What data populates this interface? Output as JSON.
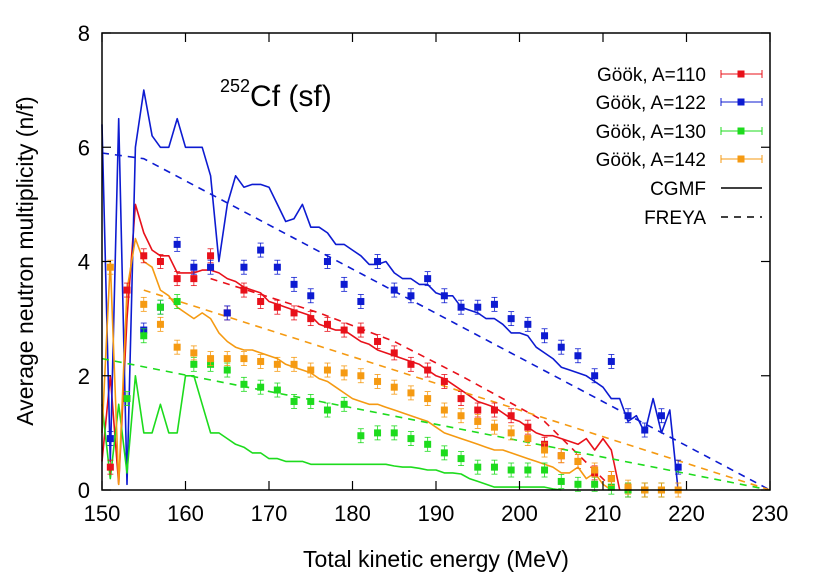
{
  "chart_data": {
    "type": "scatter",
    "title": "Cf (sf)",
    "title_superscript": "252",
    "xlabel": "Total kinetic energy (MeV)",
    "ylabel": "Average neutron multiplicity (n/f)",
    "xlim": [
      150,
      230
    ],
    "ylim": [
      0,
      8
    ],
    "xticks": [
      150,
      160,
      170,
      180,
      190,
      200,
      210,
      220,
      230
    ],
    "yticks": [
      0,
      2,
      4,
      6,
      8
    ],
    "grid": false,
    "legend_position": "top-right",
    "series": [
      {
        "name": "Göök, A=110",
        "kind": "points",
        "color": "#e8111a",
        "x": [
          151,
          153,
          155,
          157,
          159,
          161,
          163,
          165,
          167,
          169,
          171,
          173,
          175,
          177,
          179,
          181,
          183,
          185,
          187,
          189,
          191,
          193,
          195,
          197,
          199,
          201,
          203,
          205,
          207,
          209,
          211,
          213,
          215,
          217
        ],
        "y": [
          0.4,
          3.5,
          4.1,
          4.0,
          3.7,
          3.7,
          4.1,
          3.1,
          3.5,
          3.3,
          3.2,
          3.1,
          3.0,
          2.9,
          2.8,
          2.8,
          2.6,
          2.4,
          2.2,
          2.1,
          1.9,
          1.6,
          1.4,
          1.4,
          1.3,
          1.1,
          0.8,
          0.6,
          0.5,
          0.3,
          0.2,
          0.0,
          0.0,
          0.0
        ]
      },
      {
        "name": "Göök, A=122",
        "kind": "points",
        "color": "#0d1bd1",
        "x": [
          151,
          155,
          157,
          159,
          161,
          163,
          165,
          167,
          169,
          171,
          173,
          175,
          177,
          179,
          181,
          183,
          185,
          187,
          189,
          191,
          193,
          195,
          197,
          199,
          201,
          203,
          205,
          207,
          209,
          211,
          213,
          215,
          217,
          219
        ],
        "y": [
          0.9,
          2.8,
          3.2,
          4.3,
          3.9,
          3.9,
          3.1,
          3.9,
          4.2,
          3.9,
          3.6,
          3.4,
          4.0,
          3.6,
          3.3,
          4.0,
          3.5,
          3.4,
          3.7,
          3.4,
          3.2,
          3.2,
          3.25,
          3.0,
          2.9,
          2.7,
          2.5,
          2.35,
          2.0,
          2.25,
          1.3,
          1.05,
          1.3,
          0.4
        ]
      },
      {
        "name": "Göök, A=130",
        "kind": "points",
        "color": "#1ddb1d",
        "x": [
          153,
          155,
          157,
          159,
          161,
          163,
          165,
          167,
          169,
          171,
          173,
          175,
          177,
          179,
          181,
          183,
          185,
          187,
          189,
          191,
          193,
          195,
          197,
          199,
          201,
          203,
          205,
          207,
          209,
          211,
          213,
          215,
          217
        ],
        "y": [
          1.6,
          2.7,
          3.2,
          3.3,
          2.2,
          2.2,
          2.1,
          1.85,
          1.8,
          1.75,
          1.55,
          1.55,
          1.4,
          1.5,
          0.95,
          1.0,
          1.0,
          0.9,
          0.8,
          0.65,
          0.55,
          0.4,
          0.4,
          0.35,
          0.35,
          0.35,
          0.15,
          0.1,
          0.1,
          0.05,
          0.0,
          0.0,
          0.0
        ]
      },
      {
        "name": "Göök, A=142",
        "kind": "points",
        "color": "#f59a12",
        "x": [
          151,
          155,
          157,
          159,
          161,
          163,
          165,
          167,
          169,
          171,
          173,
          175,
          177,
          179,
          181,
          183,
          185,
          187,
          189,
          191,
          193,
          195,
          197,
          199,
          201,
          203,
          205,
          207,
          209,
          211,
          213,
          215,
          217,
          219
        ],
        "y": [
          3.9,
          3.25,
          2.9,
          2.5,
          2.4,
          2.3,
          2.3,
          2.3,
          2.25,
          2.2,
          2.2,
          2.1,
          2.1,
          2.05,
          2.0,
          1.9,
          1.8,
          1.7,
          1.6,
          1.4,
          1.3,
          1.2,
          1.1,
          1.0,
          0.9,
          0.7,
          0.6,
          0.5,
          0.35,
          0.2,
          0.05,
          0.0,
          0.0,
          0.0
        ]
      },
      {
        "name": "CGMF",
        "kind": "solid-lines",
        "lines": [
          {
            "color": "#e8111a",
            "x": [
              150,
              151,
              152,
              153,
              154,
              155,
              156,
              157,
              158,
              159,
              160,
              161,
              162,
              163,
              164,
              165,
              166,
              167,
              168,
              169,
              170,
              171,
              172,
              173,
              174,
              175,
              176,
              177,
              178,
              179,
              180,
              181,
              182,
              183,
              184,
              185,
              186,
              187,
              188,
              189,
              190,
              191,
              192,
              193,
              194,
              195,
              196,
              197,
              198,
              199,
              200,
              201,
              202,
              203,
              204,
              205,
              206,
              207,
              208,
              209,
              210,
              211,
              212
            ],
            "y": [
              0.5,
              2.0,
              0.1,
              3.0,
              5.0,
              4.5,
              4.2,
              4.1,
              4.1,
              3.8,
              3.8,
              3.8,
              3.85,
              3.85,
              3.8,
              3.7,
              3.65,
              3.55,
              3.5,
              3.45,
              3.3,
              3.25,
              3.2,
              3.15,
              3.1,
              3.05,
              2.9,
              2.85,
              2.8,
              2.8,
              2.7,
              2.6,
              2.55,
              2.45,
              2.4,
              2.35,
              2.3,
              2.25,
              2.2,
              2.1,
              2.0,
              1.95,
              1.85,
              1.75,
              1.65,
              1.55,
              1.5,
              1.45,
              1.35,
              1.25,
              1.2,
              1.1,
              1.0,
              0.95,
              0.95,
              0.9,
              0.85,
              0.8,
              0.9,
              0.7,
              0.9,
              0.7,
              0.0
            ]
          },
          {
            "color": "#0d1bd1",
            "x": [
              150,
              151,
              152,
              153,
              154,
              155,
              156,
              157,
              158,
              159,
              160,
              161,
              162,
              163,
              164,
              165,
              166,
              167,
              168,
              169,
              170,
              171,
              172,
              173,
              174,
              175,
              176,
              177,
              178,
              179,
              180,
              181,
              182,
              183,
              184,
              185,
              186,
              187,
              188,
              189,
              190,
              191,
              192,
              193,
              194,
              195,
              196,
              197,
              198,
              199,
              200,
              201,
              202,
              203,
              204,
              205,
              206,
              207,
              208,
              209,
              210,
              211,
              212,
              213,
              214,
              215,
              216,
              217,
              218,
              219
            ],
            "y": [
              6.4,
              0.5,
              6.5,
              0.1,
              6.0,
              7.0,
              6.2,
              6.0,
              6.0,
              6.5,
              6.0,
              6.0,
              6.0,
              5.5,
              4.0,
              5.0,
              5.5,
              5.3,
              5.35,
              5.35,
              5.3,
              5.0,
              4.7,
              4.75,
              5.0,
              4.6,
              4.6,
              4.5,
              4.3,
              4.3,
              4.2,
              4.1,
              3.95,
              3.95,
              4.0,
              3.8,
              3.7,
              3.7,
              3.6,
              3.6,
              3.45,
              3.4,
              3.4,
              3.2,
              3.15,
              3.1,
              3.0,
              3.0,
              2.9,
              2.75,
              2.75,
              2.7,
              2.5,
              2.4,
              2.3,
              2.15,
              2.1,
              2.05,
              2.0,
              1.9,
              1.8,
              1.6,
              1.6,
              1.2,
              1.3,
              1.0,
              1.6,
              1.0,
              1.4,
              0.0
            ]
          },
          {
            "color": "#1ddb1d",
            "x": [
              150,
              151,
              152,
              153,
              154,
              155,
              156,
              157,
              158,
              159,
              160,
              161,
              162,
              163,
              164,
              165,
              166,
              167,
              168,
              169,
              170,
              171,
              172,
              173,
              174,
              175,
              176,
              177,
              178,
              179,
              180,
              181,
              182,
              183,
              184,
              185,
              186,
              187,
              188,
              189,
              190,
              191,
              192,
              193,
              194,
              195,
              196,
              197,
              198,
              199,
              200,
              201,
              202,
              203,
              204,
              205
            ],
            "y": [
              1.5,
              0.2,
              1.5,
              0.3,
              2.0,
              1.0,
              1.0,
              1.5,
              1.0,
              1.0,
              2.0,
              2.0,
              1.5,
              1.0,
              1.0,
              0.9,
              0.8,
              0.75,
              0.65,
              0.65,
              0.55,
              0.55,
              0.5,
              0.5,
              0.5,
              0.45,
              0.45,
              0.45,
              0.45,
              0.45,
              0.45,
              0.45,
              0.45,
              0.45,
              0.45,
              0.42,
              0.4,
              0.4,
              0.38,
              0.35,
              0.35,
              0.3,
              0.3,
              0.28,
              0.2,
              0.15,
              0.1,
              0.05,
              0.05,
              0.05,
              0.05,
              0.05,
              0.05,
              0.05,
              0.02,
              0.0
            ]
          },
          {
            "color": "#f59a12",
            "x": [
              150,
              151,
              152,
              153,
              154,
              155,
              156,
              157,
              158,
              159,
              160,
              161,
              162,
              163,
              164,
              165,
              166,
              167,
              168,
              169,
              170,
              171,
              172,
              173,
              174,
              175,
              176,
              177,
              178,
              179,
              180,
              181,
              182,
              183,
              184,
              185,
              186,
              187,
              188,
              189,
              190,
              191,
              192,
              193,
              194,
              195,
              196,
              197,
              198,
              199,
              200,
              201,
              202,
              203,
              204,
              205,
              206,
              207,
              208,
              209,
              210,
              211
            ],
            "y": [
              1.0,
              4.0,
              0.1,
              3.5,
              4.4,
              4.0,
              3.9,
              3.5,
              3.4,
              3.2,
              3.1,
              3.0,
              3.1,
              3.0,
              2.75,
              2.6,
              2.5,
              2.45,
              2.45,
              2.4,
              2.35,
              2.3,
              2.2,
              2.15,
              2.1,
              2.05,
              1.95,
              1.9,
              1.8,
              1.7,
              1.6,
              1.55,
              1.5,
              1.5,
              1.45,
              1.4,
              1.35,
              1.3,
              1.25,
              1.2,
              1.1,
              1.0,
              0.95,
              0.9,
              0.85,
              0.8,
              0.75,
              0.7,
              0.7,
              0.65,
              0.6,
              0.55,
              0.5,
              0.45,
              0.4,
              0.3,
              0.3,
              0.4,
              0.2,
              0.3,
              0.1,
              0.0
            ]
          }
        ]
      },
      {
        "name": "FREYA",
        "kind": "dashed-lines",
        "lines": [
          {
            "color": "#e8111a",
            "x": [
              163,
              176,
              185,
              193,
              203,
              211
            ],
            "y": [
              3.7,
              3.1,
              2.6,
              2.0,
              1.2,
              0.05
            ]
          },
          {
            "color": "#0d1bd1",
            "x": [
              150,
              155,
              230
            ],
            "y": [
              5.9,
              5.8,
              0.0
            ]
          },
          {
            "color": "#1ddb1d",
            "x": [
              150,
              230
            ],
            "y": [
              2.3,
              0.0
            ]
          },
          {
            "color": "#f59a12",
            "x": [
              155,
              230
            ],
            "y": [
              3.5,
              0.0
            ]
          }
        ]
      }
    ]
  }
}
